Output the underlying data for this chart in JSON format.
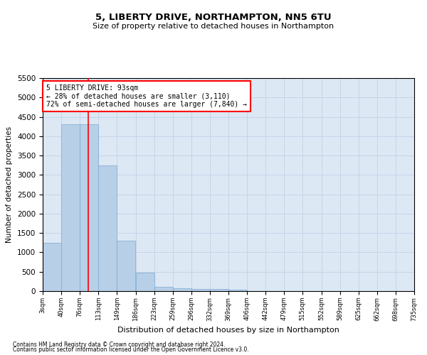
{
  "title1": "5, LIBERTY DRIVE, NORTHAMPTON, NN5 6TU",
  "title2": "Size of property relative to detached houses in Northampton",
  "xlabel": "Distribution of detached houses by size in Northampton",
  "ylabel": "Number of detached properties",
  "footer1": "Contains HM Land Registry data © Crown copyright and database right 2024.",
  "footer2": "Contains public sector information licensed under the Open Government Licence v3.0.",
  "annotation_title": "5 LIBERTY DRIVE: 93sqm",
  "annotation_line1": "← 28% of detached houses are smaller (3,110)",
  "annotation_line2": "72% of semi-detached houses are larger (7,840) →",
  "bar_color": "#b8cfe8",
  "bar_edge_color": "#7aaad0",
  "red_line_x": 93,
  "xlim": [
    3,
    735
  ],
  "ylim": [
    0,
    5500
  ],
  "yticks": [
    0,
    500,
    1000,
    1500,
    2000,
    2500,
    3000,
    3500,
    4000,
    4500,
    5000,
    5500
  ],
  "bin_edges": [
    3,
    40,
    76,
    113,
    149,
    186,
    223,
    259,
    296,
    332,
    369,
    406,
    442,
    479,
    515,
    552,
    589,
    625,
    662,
    698,
    735
  ],
  "bin_labels": [
    "3sqm",
    "40sqm",
    "76sqm",
    "113sqm",
    "149sqm",
    "186sqm",
    "223sqm",
    "259sqm",
    "296sqm",
    "332sqm",
    "369sqm",
    "406sqm",
    "442sqm",
    "479sqm",
    "515sqm",
    "552sqm",
    "589sqm",
    "625sqm",
    "662sqm",
    "698sqm",
    "735sqm"
  ],
  "bar_heights": [
    1250,
    4300,
    4300,
    3250,
    1300,
    475,
    110,
    75,
    60,
    50,
    40,
    0,
    0,
    0,
    0,
    0,
    0,
    0,
    0,
    0
  ],
  "grid_color": "#c8d4e8",
  "background_color": "#dce8f4"
}
